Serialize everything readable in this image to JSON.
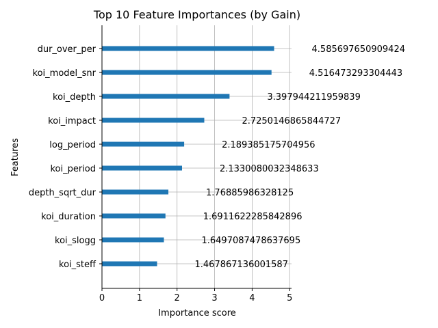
{
  "chart_data": {
    "type": "bar",
    "orientation": "horizontal",
    "title": "Top 10 Feature Importances (by Gain)",
    "xlabel": "Importance score",
    "ylabel": "Features",
    "xlim": [
      0,
      5.05
    ],
    "xticks": [
      0,
      1,
      2,
      3,
      4,
      5
    ],
    "grid": true,
    "bar_color": "#1f77b4",
    "categories": [
      "dur_over_per",
      "koi_model_snr",
      "koi_depth",
      "koi_impact",
      "log_period",
      "koi_period",
      "depth_sqrt_dur",
      "koi_duration",
      "koi_slogg",
      "koi_steff"
    ],
    "values": [
      4.585697650909424,
      4.516473293304443,
      3.397944211959839,
      2.7250146865844727,
      2.189385175704956,
      2.1330080032348633,
      1.76885986328125,
      1.6911622285842896,
      1.6497087478637695,
      1.467867136001587
    ],
    "value_labels": [
      "4.585697650909424",
      "4.516473293304443",
      "3.397944211959839",
      "2.7250146865844727",
      "2.189385175704956",
      "2.1330080032348633",
      "1.76885986328125",
      "1.6911622285842896",
      "1.6497087478637695",
      "1.467867136001587"
    ]
  }
}
